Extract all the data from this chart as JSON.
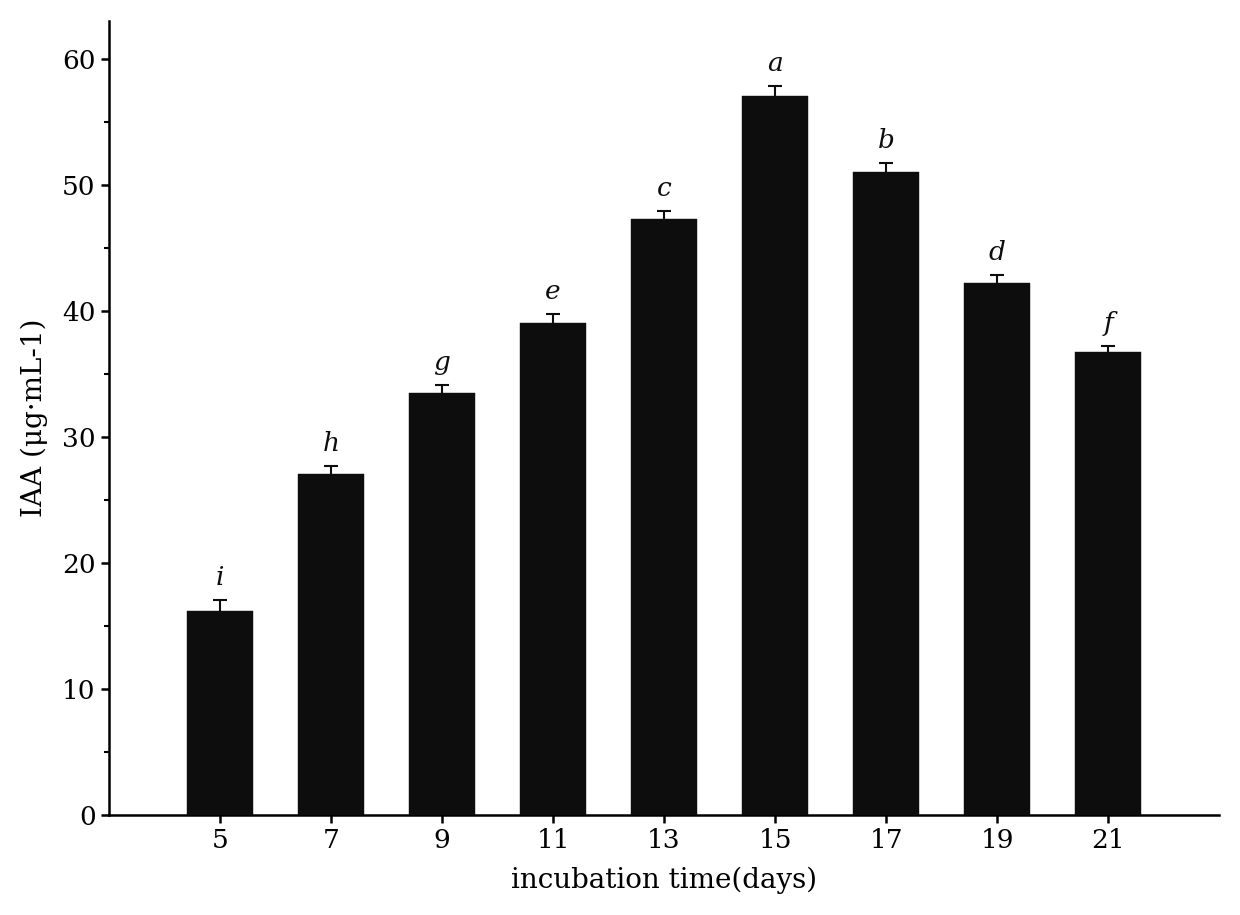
{
  "categories": [
    5,
    7,
    9,
    11,
    13,
    15,
    17,
    19,
    21
  ],
  "values": [
    16.2,
    27.0,
    33.5,
    39.0,
    47.3,
    57.0,
    51.0,
    42.2,
    36.7
  ],
  "errors": [
    0.8,
    0.7,
    0.6,
    0.7,
    0.6,
    0.8,
    0.7,
    0.6,
    0.5
  ],
  "letters": [
    "i",
    "h",
    "g",
    "e",
    "c",
    "a",
    "b",
    "d",
    "f"
  ],
  "bar_color": "#0d0d0d",
  "error_color": "#0d0d0d",
  "xlabel": "incubation time(days)",
  "ylabel": "IAA (μg·mL-1)",
  "ylim": [
    0,
    63
  ],
  "yticks": [
    0,
    10,
    20,
    30,
    40,
    50,
    60
  ],
  "bar_width": 1.2,
  "background_color": "#ffffff",
  "label_fontsize": 20,
  "tick_fontsize": 19,
  "letter_fontsize": 19
}
